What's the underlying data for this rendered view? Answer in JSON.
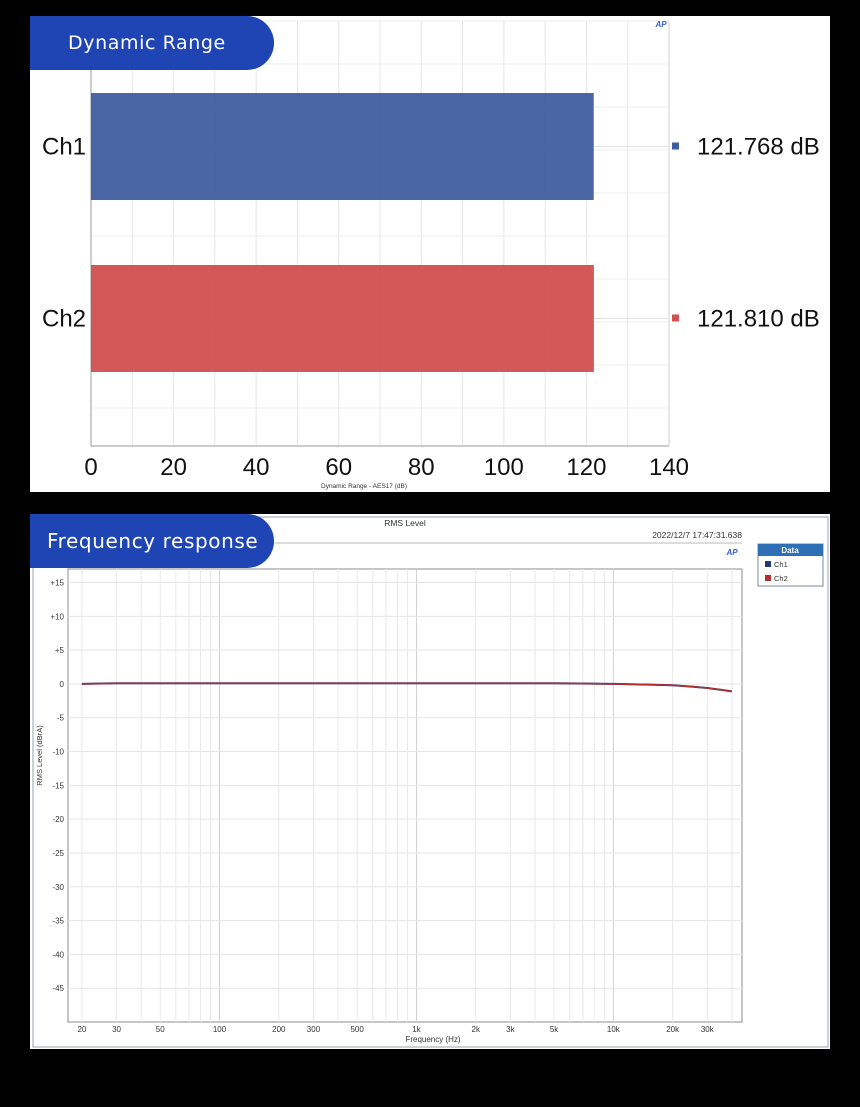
{
  "panel1": {
    "title": "Dynamic Range",
    "logo": "AP"
  },
  "panel2": {
    "title": "Frequency response",
    "logo": "AP"
  },
  "chart_data": [
    {
      "type": "bar",
      "orientation": "horizontal",
      "categories": [
        "Ch1",
        "Ch2"
      ],
      "values": [
        121.768,
        121.81
      ],
      "value_labels": [
        "121.768 dB",
        "121.810 dB"
      ],
      "colors": [
        "#3f5ea0",
        "#d14f4f"
      ],
      "xlim": [
        0,
        140
      ],
      "xticks": [
        0,
        20,
        40,
        60,
        80,
        100,
        120,
        140
      ],
      "xlabel": "Dynamic Range - AES17 (dB)",
      "grid": true
    },
    {
      "type": "line",
      "title": "RMS Level",
      "timestamp": "2022/12/7 17:47:31.638",
      "xlabel": "Frequency (Hz)",
      "ylabel": "RMS Level (dBrA)",
      "x_scale": "log",
      "xlim": [
        17,
        45000
      ],
      "ylim": [
        -50,
        17
      ],
      "xticks": [
        20,
        30,
        50,
        100,
        200,
        300,
        500,
        1000,
        2000,
        3000,
        5000,
        10000,
        20000,
        30000
      ],
      "xtick_labels": [
        "20",
        "30",
        "50",
        "100",
        "200",
        "300",
        "500",
        "1k",
        "2k",
        "3k",
        "5k",
        "10k",
        "20k",
        "30k"
      ],
      "yticks": [
        15,
        10,
        5,
        0,
        -5,
        -10,
        -15,
        -20,
        -25,
        -30,
        -35,
        -40,
        -45
      ],
      "ytick_labels": [
        "+15",
        "+10",
        "+5",
        "0",
        "-5",
        "-10",
        "-15",
        "-20",
        "-25",
        "-30",
        "-35",
        "-40",
        "-45"
      ],
      "legend": {
        "title": "Data",
        "position": "outside-top-right"
      },
      "grid": true,
      "series": [
        {
          "name": "Ch1",
          "color": "#1f3a7a",
          "x": [
            20,
            30,
            50,
            100,
            200,
            500,
            1000,
            2000,
            5000,
            10000,
            15000,
            20000,
            25000,
            30000,
            35000,
            40000
          ],
          "y": [
            0.0,
            0.1,
            0.1,
            0.1,
            0.1,
            0.1,
            0.1,
            0.1,
            0.1,
            0.0,
            -0.1,
            -0.2,
            -0.4,
            -0.6,
            -0.85,
            -1.1
          ]
        },
        {
          "name": "Ch2",
          "color": "#b03030",
          "x": [
            20,
            30,
            50,
            100,
            200,
            500,
            1000,
            2000,
            5000,
            10000,
            15000,
            20000,
            25000,
            30000,
            35000,
            40000
          ],
          "y": [
            0.0,
            0.1,
            0.1,
            0.1,
            0.1,
            0.1,
            0.1,
            0.1,
            0.1,
            0.0,
            -0.1,
            -0.2,
            -0.4,
            -0.6,
            -0.85,
            -1.1
          ]
        }
      ]
    }
  ]
}
